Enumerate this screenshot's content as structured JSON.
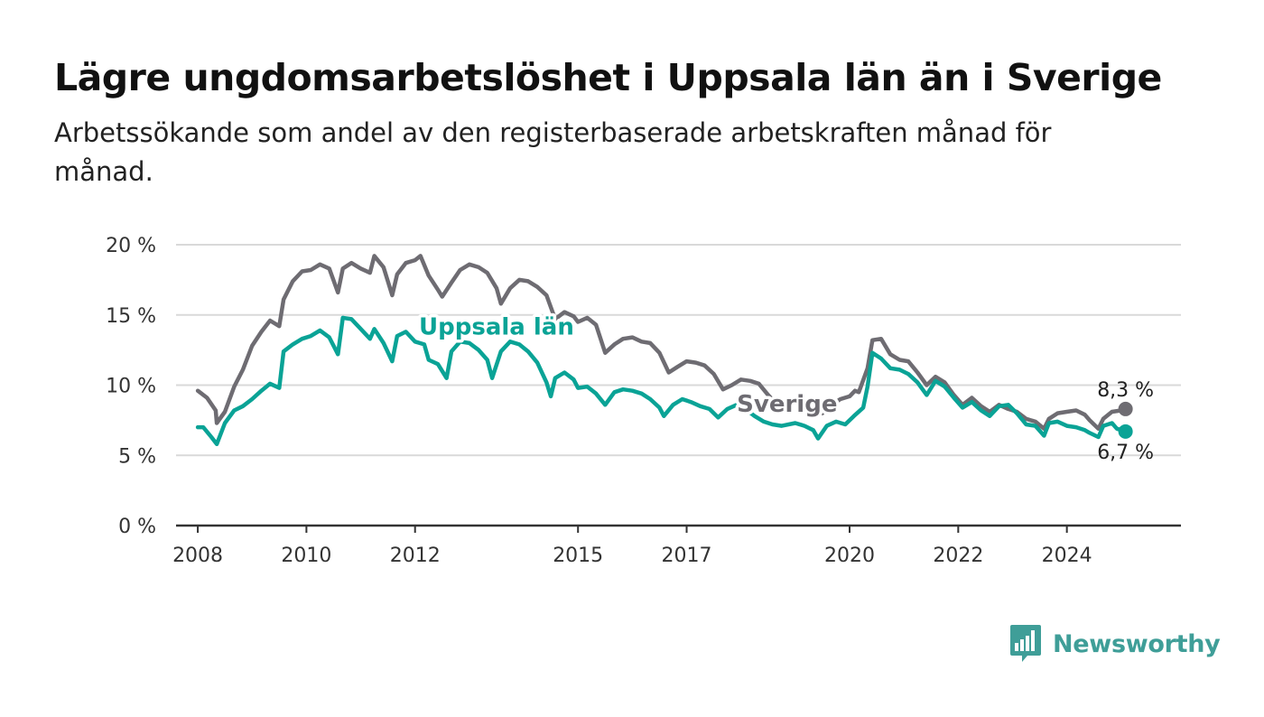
{
  "title": "Lägre ungdomsarbetslöshet i Uppsala län än i Sverige",
  "subtitle": "Arbetssökande som andel av den registerbaserade arbetskraften månad för månad.",
  "brand": "Newsworthy",
  "colors": {
    "sverige": "#6e6c72",
    "uppsala": "#0aa396",
    "grid": "#d9d9d9",
    "axis": "#333333",
    "brand": "#3f9e98"
  },
  "chart_data": {
    "type": "line",
    "title": "Lägre ungdomsarbetslöshet i Uppsala län än i Sverige",
    "subtitle": "Arbetssökande som andel av den registerbaserade arbetskraften månad för månad.",
    "xlabel": "",
    "ylabel": "",
    "xlim": [
      2007.6,
      2026.1
    ],
    "ylim": [
      0,
      20
    ],
    "x_ticks": [
      {
        "value": 2008,
        "label": "2008"
      },
      {
        "value": 2010,
        "label": "2010"
      },
      {
        "value": 2012,
        "label": "2012"
      },
      {
        "value": 2015,
        "label": "2015"
      },
      {
        "value": 2017,
        "label": "2017"
      },
      {
        "value": 2020,
        "label": "2020"
      },
      {
        "value": 2022,
        "label": "2022"
      },
      {
        "value": 2024,
        "label": "2024"
      }
    ],
    "y_ticks": [
      {
        "value": 0,
        "label": "0 %"
      },
      {
        "value": 5,
        "label": "5 %"
      },
      {
        "value": 10,
        "label": "10 %"
      },
      {
        "value": 15,
        "label": "15 %"
      },
      {
        "value": 20,
        "label": "20 %"
      }
    ],
    "grid": true,
    "legend": "none (inline labels)",
    "series": [
      {
        "name": "Sverige",
        "label_at": {
          "x": 2018.85,
          "y": 8.1
        },
        "end_label": "8,3 %",
        "points": [
          [
            2008.0,
            9.6
          ],
          [
            2008.17,
            9.1
          ],
          [
            2008.33,
            8.2
          ],
          [
            2008.35,
            7.3
          ],
          [
            2008.5,
            8.1
          ],
          [
            2008.67,
            9.9
          ],
          [
            2008.83,
            11.1
          ],
          [
            2009.0,
            12.8
          ],
          [
            2009.17,
            13.8
          ],
          [
            2009.33,
            14.6
          ],
          [
            2009.5,
            14.2
          ],
          [
            2009.58,
            16.1
          ],
          [
            2009.75,
            17.4
          ],
          [
            2009.92,
            18.1
          ],
          [
            2010.08,
            18.2
          ],
          [
            2010.25,
            18.6
          ],
          [
            2010.42,
            18.3
          ],
          [
            2010.58,
            16.6
          ],
          [
            2010.67,
            18.3
          ],
          [
            2010.83,
            18.7
          ],
          [
            2011.0,
            18.3
          ],
          [
            2011.17,
            18.0
          ],
          [
            2011.25,
            19.2
          ],
          [
            2011.42,
            18.4
          ],
          [
            2011.58,
            16.4
          ],
          [
            2011.67,
            17.9
          ],
          [
            2011.83,
            18.7
          ],
          [
            2012.0,
            18.9
          ],
          [
            2012.1,
            19.2
          ],
          [
            2012.25,
            17.8
          ],
          [
            2012.42,
            16.8
          ],
          [
            2012.5,
            16.3
          ],
          [
            2012.67,
            17.3
          ],
          [
            2012.83,
            18.2
          ],
          [
            2013.0,
            18.6
          ],
          [
            2013.17,
            18.4
          ],
          [
            2013.33,
            18.0
          ],
          [
            2013.5,
            16.9
          ],
          [
            2013.58,
            15.8
          ],
          [
            2013.75,
            16.9
          ],
          [
            2013.92,
            17.5
          ],
          [
            2014.08,
            17.4
          ],
          [
            2014.25,
            17.0
          ],
          [
            2014.42,
            16.4
          ],
          [
            2014.58,
            14.7
          ],
          [
            2014.75,
            15.2
          ],
          [
            2014.92,
            14.9
          ],
          [
            2015.0,
            14.5
          ],
          [
            2015.17,
            14.8
          ],
          [
            2015.33,
            14.3
          ],
          [
            2015.5,
            12.3
          ],
          [
            2015.67,
            12.9
          ],
          [
            2015.83,
            13.3
          ],
          [
            2016.0,
            13.4
          ],
          [
            2016.17,
            13.1
          ],
          [
            2016.33,
            13.0
          ],
          [
            2016.5,
            12.3
          ],
          [
            2016.67,
            10.9
          ],
          [
            2016.83,
            11.3
          ],
          [
            2017.0,
            11.7
          ],
          [
            2017.17,
            11.6
          ],
          [
            2017.33,
            11.4
          ],
          [
            2017.5,
            10.8
          ],
          [
            2017.67,
            9.7
          ],
          [
            2017.83,
            10.0
          ],
          [
            2018.0,
            10.4
          ],
          [
            2018.17,
            10.3
          ],
          [
            2018.33,
            10.1
          ],
          [
            2018.5,
            9.3
          ],
          [
            2018.67,
            8.6
          ],
          [
            2018.83,
            8.3
          ],
          [
            2019.0,
            8.9
          ],
          [
            2019.17,
            8.7
          ],
          [
            2019.33,
            8.6
          ],
          [
            2019.5,
            8.0
          ],
          [
            2019.67,
            8.6
          ],
          [
            2019.83,
            9.0
          ],
          [
            2020.0,
            9.2
          ],
          [
            2020.1,
            9.6
          ],
          [
            2020.17,
            9.5
          ],
          [
            2020.33,
            11.2
          ],
          [
            2020.42,
            13.2
          ],
          [
            2020.58,
            13.3
          ],
          [
            2020.75,
            12.2
          ],
          [
            2020.92,
            11.8
          ],
          [
            2021.08,
            11.7
          ],
          [
            2021.25,
            10.9
          ],
          [
            2021.42,
            10.0
          ],
          [
            2021.58,
            10.6
          ],
          [
            2021.75,
            10.2
          ],
          [
            2021.92,
            9.3
          ],
          [
            2022.08,
            8.6
          ],
          [
            2022.25,
            9.1
          ],
          [
            2022.42,
            8.5
          ],
          [
            2022.58,
            8.1
          ],
          [
            2022.75,
            8.6
          ],
          [
            2022.92,
            8.3
          ],
          [
            2023.08,
            8.1
          ],
          [
            2023.25,
            7.6
          ],
          [
            2023.42,
            7.4
          ],
          [
            2023.58,
            6.9
          ],
          [
            2023.67,
            7.6
          ],
          [
            2023.83,
            8.0
          ],
          [
            2024.0,
            8.1
          ],
          [
            2024.17,
            8.2
          ],
          [
            2024.33,
            7.9
          ],
          [
            2024.42,
            7.5
          ],
          [
            2024.58,
            6.9
          ],
          [
            2024.67,
            7.6
          ],
          [
            2024.83,
            8.1
          ],
          [
            2025.0,
            8.2
          ],
          [
            2025.08,
            8.3
          ]
        ]
      },
      {
        "name": "Uppsala län",
        "label_at": {
          "x": 2013.5,
          "y": 13.6
        },
        "end_label": "6,7 %",
        "points": [
          [
            2008.0,
            7.0
          ],
          [
            2008.1,
            7.0
          ],
          [
            2008.25,
            6.3
          ],
          [
            2008.35,
            5.8
          ],
          [
            2008.5,
            7.3
          ],
          [
            2008.67,
            8.2
          ],
          [
            2008.83,
            8.5
          ],
          [
            2009.0,
            9.0
          ],
          [
            2009.17,
            9.6
          ],
          [
            2009.33,
            10.1
          ],
          [
            2009.5,
            9.8
          ],
          [
            2009.58,
            12.4
          ],
          [
            2009.75,
            12.9
          ],
          [
            2009.92,
            13.3
          ],
          [
            2010.08,
            13.5
          ],
          [
            2010.25,
            13.9
          ],
          [
            2010.42,
            13.4
          ],
          [
            2010.58,
            12.2
          ],
          [
            2010.67,
            14.8
          ],
          [
            2010.83,
            14.7
          ],
          [
            2011.0,
            14.0
          ],
          [
            2011.17,
            13.3
          ],
          [
            2011.25,
            14.0
          ],
          [
            2011.42,
            13.0
          ],
          [
            2011.58,
            11.7
          ],
          [
            2011.67,
            13.5
          ],
          [
            2011.83,
            13.8
          ],
          [
            2012.0,
            13.1
          ],
          [
            2012.17,
            12.9
          ],
          [
            2012.25,
            11.8
          ],
          [
            2012.42,
            11.5
          ],
          [
            2012.58,
            10.5
          ],
          [
            2012.67,
            12.4
          ],
          [
            2012.83,
            13.1
          ],
          [
            2013.0,
            13.0
          ],
          [
            2013.17,
            12.5
          ],
          [
            2013.33,
            11.8
          ],
          [
            2013.42,
            10.5
          ],
          [
            2013.58,
            12.4
          ],
          [
            2013.75,
            13.1
          ],
          [
            2013.92,
            12.9
          ],
          [
            2014.08,
            12.4
          ],
          [
            2014.25,
            11.6
          ],
          [
            2014.42,
            10.2
          ],
          [
            2014.5,
            9.2
          ],
          [
            2014.58,
            10.5
          ],
          [
            2014.75,
            10.9
          ],
          [
            2014.92,
            10.4
          ],
          [
            2015.0,
            9.8
          ],
          [
            2015.17,
            9.9
          ],
          [
            2015.33,
            9.4
          ],
          [
            2015.5,
            8.6
          ],
          [
            2015.67,
            9.5
          ],
          [
            2015.83,
            9.7
          ],
          [
            2016.0,
            9.6
          ],
          [
            2016.17,
            9.4
          ],
          [
            2016.33,
            9.0
          ],
          [
            2016.5,
            8.4
          ],
          [
            2016.58,
            7.8
          ],
          [
            2016.75,
            8.6
          ],
          [
            2016.92,
            9.0
          ],
          [
            2017.08,
            8.8
          ],
          [
            2017.25,
            8.5
          ],
          [
            2017.42,
            8.3
          ],
          [
            2017.58,
            7.7
          ],
          [
            2017.75,
            8.3
          ],
          [
            2017.92,
            8.6
          ],
          [
            2018.08,
            8.3
          ],
          [
            2018.25,
            7.8
          ],
          [
            2018.42,
            7.4
          ],
          [
            2018.58,
            7.2
          ],
          [
            2018.75,
            7.1
          ],
          [
            2019.0,
            7.3
          ],
          [
            2019.17,
            7.1
          ],
          [
            2019.33,
            6.8
          ],
          [
            2019.42,
            6.2
          ],
          [
            2019.58,
            7.1
          ],
          [
            2019.75,
            7.4
          ],
          [
            2019.92,
            7.2
          ],
          [
            2020.08,
            7.8
          ],
          [
            2020.25,
            8.4
          ],
          [
            2020.33,
            9.9
          ],
          [
            2020.42,
            12.3
          ],
          [
            2020.58,
            11.9
          ],
          [
            2020.75,
            11.2
          ],
          [
            2020.92,
            11.1
          ],
          [
            2021.08,
            10.8
          ],
          [
            2021.25,
            10.2
          ],
          [
            2021.42,
            9.3
          ],
          [
            2021.58,
            10.3
          ],
          [
            2021.75,
            9.9
          ],
          [
            2021.92,
            9.1
          ],
          [
            2022.08,
            8.4
          ],
          [
            2022.25,
            8.8
          ],
          [
            2022.42,
            8.2
          ],
          [
            2022.58,
            7.8
          ],
          [
            2022.75,
            8.5
          ],
          [
            2022.92,
            8.6
          ],
          [
            2023.08,
            8.0
          ],
          [
            2023.25,
            7.2
          ],
          [
            2023.42,
            7.1
          ],
          [
            2023.58,
            6.4
          ],
          [
            2023.67,
            7.3
          ],
          [
            2023.83,
            7.4
          ],
          [
            2024.0,
            7.1
          ],
          [
            2024.17,
            7.0
          ],
          [
            2024.33,
            6.8
          ],
          [
            2024.42,
            6.6
          ],
          [
            2024.58,
            6.3
          ],
          [
            2024.67,
            7.1
          ],
          [
            2024.83,
            7.3
          ],
          [
            2024.92,
            6.9
          ],
          [
            2025.08,
            6.7
          ]
        ]
      }
    ]
  }
}
